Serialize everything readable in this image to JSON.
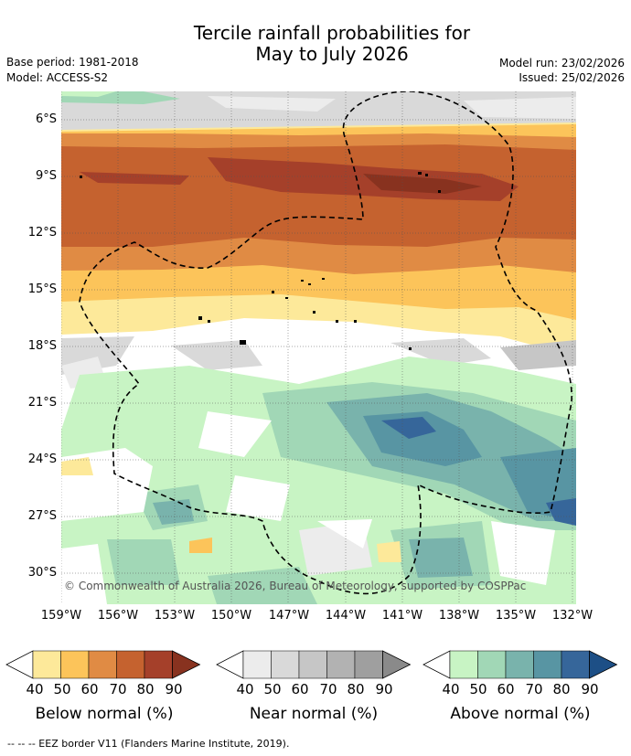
{
  "title": {
    "line1": "Tercile rainfall probabilities for",
    "line2": "May to July 2026"
  },
  "meta": {
    "base_period": "Base period: 1981-2018",
    "model": "Model: ACCESS-S2",
    "model_run": "Model run: 23/02/2026",
    "issued": "Issued: 25/02/2026"
  },
  "map": {
    "lat_labels": [
      "6°S",
      "9°S",
      "12°S",
      "15°S",
      "18°S",
      "21°S",
      "24°S",
      "27°S",
      "30°S"
    ],
    "lon_labels": [
      "159°W",
      "156°W",
      "153°W",
      "150°W",
      "147°W",
      "144°W",
      "141°W",
      "138°W",
      "135°W",
      "132°W"
    ],
    "copyright": "© Commonwealth of Australia 2026, Bureau of Meteorology, supported by COSPPac"
  },
  "colorbars": [
    {
      "label": "Below normal (%)",
      "colors": [
        "#fde99a",
        "#fcc45a",
        "#e08b44",
        "#c5622f",
        "#a5402a",
        "#88321f"
      ]
    },
    {
      "label": "Near normal (%)",
      "colors": [
        "#ececec",
        "#d9d9d9",
        "#c6c6c6",
        "#b2b2b2",
        "#9f9f9f",
        "#8a8a8a"
      ]
    },
    {
      "label": "Above normal (%)",
      "colors": [
        "#c8f4c4",
        "#a1d7b6",
        "#79b3ac",
        "#5895a3",
        "#36669a",
        "#1d4f86"
      ]
    }
  ],
  "colorbar_ticks": [
    "40",
    "50",
    "60",
    "70",
    "80",
    "90"
  ],
  "footnote": "--  --  -- EEZ border V11 (Flanders Marine Institute, 2019)."
}
